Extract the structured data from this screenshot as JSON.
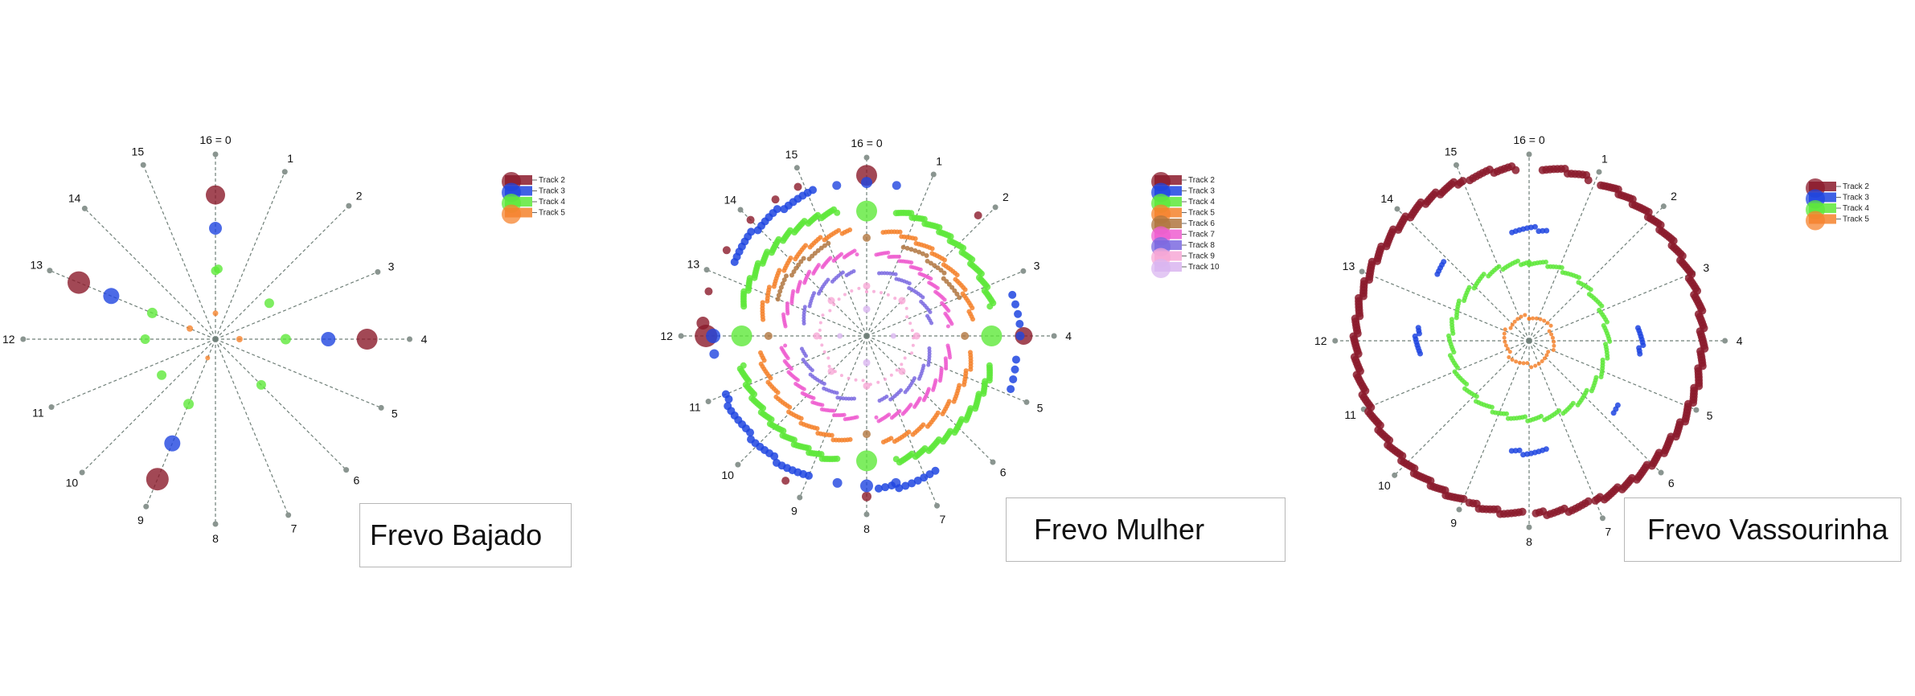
{
  "chart_data": [
    {
      "type": "scatter",
      "title": "Frevo Bajado",
      "axis": {
        "kind": "radial-clock",
        "subdivisions": 16,
        "labels": [
          "16 = 0",
          "1",
          "2",
          "3",
          "4",
          "5",
          "6",
          "7",
          "8",
          "9",
          "10",
          "11",
          "12",
          "13",
          "14",
          "15"
        ]
      },
      "legend": {
        "placement": "top-right",
        "entries": [
          "Track 2",
          "Track 3",
          "Track 4",
          "Track 5"
        ]
      },
      "series": [
        {
          "name": "Track 2",
          "color": "#8b1a2b",
          "points": [
            {
              "step": 0,
              "r": 0.78,
              "size": 22
            },
            {
              "step": 4,
              "r": 0.82,
              "size": 24
            },
            {
              "step": 9,
              "r": 0.82,
              "size": 26
            },
            {
              "step": 13,
              "r": 0.8,
              "size": 26
            }
          ]
        },
        {
          "name": "Track 3",
          "color": "#1f45e0",
          "points": [
            {
              "step": 0,
              "r": 0.6,
              "size": 14
            },
            {
              "step": 4,
              "r": 0.61,
              "size": 16
            },
            {
              "step": 9,
              "r": 0.61,
              "size": 18
            },
            {
              "step": 13,
              "r": 0.61,
              "size": 18
            }
          ]
        },
        {
          "name": "Track 4",
          "color": "#5ee83a",
          "points": [
            {
              "step": 0,
              "r": 0.37,
              "size": 9
            },
            {
              "step": 0.1,
              "r": 0.38,
              "size": 9
            },
            {
              "step": 2.5,
              "r": 0.35,
              "size": 10
            },
            {
              "step": 4,
              "r": 0.38,
              "size": 11
            },
            {
              "step": 6,
              "r": 0.35,
              "size": 10
            },
            {
              "step": 9,
              "r": 0.38,
              "size": 11
            },
            {
              "step": 10.5,
              "r": 0.35,
              "size": 10
            },
            {
              "step": 12,
              "r": 0.38,
              "size": 10
            },
            {
              "step": 13,
              "r": 0.37,
              "size": 11
            }
          ]
        },
        {
          "name": "Track 5",
          "color": "#f5832d",
          "points": [
            {
              "step": 0,
              "r": 0.14,
              "size": 5
            },
            {
              "step": 4,
              "r": 0.13,
              "size": 6
            },
            {
              "step": 9,
              "r": 0.11,
              "size": 4
            },
            {
              "step": 13,
              "r": 0.15,
              "size": 6
            }
          ]
        }
      ]
    },
    {
      "type": "scatter",
      "title": "Frevo Mulher",
      "axis": {
        "kind": "radial-clock",
        "subdivisions": 16,
        "labels": [
          "16 = 0",
          "1",
          "2",
          "3",
          "4",
          "5",
          "6",
          "7",
          "8",
          "9",
          "10",
          "11",
          "12",
          "13",
          "14",
          "15"
        ]
      },
      "legend": {
        "placement": "top-right",
        "entries": [
          "Track 2",
          "Track 3",
          "Track 4",
          "Track 5",
          "Track 6",
          "Track 7",
          "Track 8",
          "Track 9",
          "Track 10"
        ]
      },
      "series": [
        {
          "name": "Track 2",
          "color": "#8b1a2b",
          "points": [
            {
              "step": 0,
              "r": 0.9,
              "size": 24
            },
            {
              "step": 4,
              "r": 0.88,
              "size": 20
            },
            {
              "step": 8,
              "r": 0.9,
              "size": 10
            },
            {
              "step": 12,
              "r": 0.9,
              "size": 26
            },
            {
              "step": 12.2,
              "r": 0.92,
              "size": 14
            },
            {
              "step": 12.7,
              "r": 0.92,
              "size": 8
            },
            {
              "step": 13.4,
              "r": 0.92,
              "size": 8
            },
            {
              "step": 14,
              "r": 0.92,
              "size": 8
            },
            {
              "step": 14.5,
              "r": 0.92,
              "size": 8
            },
            {
              "step": 14.9,
              "r": 0.92,
              "size": 8
            },
            {
              "step": 1.9,
              "r": 0.92,
              "size": 8
            },
            {
              "step": 9.3,
              "r": 0.93,
              "size": 8
            }
          ]
        },
        {
          "name": "Track 3",
          "color": "#1f45e0",
          "points": [
            {
              "step": 0,
              "r": 0.86,
              "size": 12
            },
            {
              "step": 0.5,
              "r": 0.86,
              "size": 9
            },
            {
              "step": 15.5,
              "r": 0.86,
              "size": 9
            },
            {
              "step": 4,
              "r": 0.86,
              "size": 9
            },
            {
              "step": 8,
              "r": 0.84,
              "size": 14
            },
            {
              "step": 7.5,
              "r": 0.84,
              "size": 10
            },
            {
              "step": 8.5,
              "r": 0.84,
              "size": 10
            },
            {
              "step": 12,
              "r": 0.86,
              "size": 16
            },
            {
              "step": 11.7,
              "r": 0.86,
              "size": 10
            }
          ],
          "arcs": [
            {
              "from": 13.3,
              "to": 15.1,
              "r": 0.86,
              "density": 20,
              "size": 8
            },
            {
              "from": 3.3,
              "to": 3.8,
              "r": 0.86,
              "density": 4,
              "size": 8
            },
            {
              "from": 4.4,
              "to": 4.9,
              "r": 0.86,
              "density": 4,
              "size": 8
            },
            {
              "from": 9.0,
              "to": 11.0,
              "r": 0.86,
              "density": 22,
              "size": 8
            },
            {
              "from": 6.8,
              "to": 7.8,
              "r": 0.86,
              "density": 10,
              "size": 8
            }
          ]
        },
        {
          "name": "Track 4",
          "color": "#5ee83a",
          "points": [
            {
              "step": 0,
              "r": 0.7,
              "size": 24
            },
            {
              "step": 4,
              "r": 0.7,
              "size": 24
            },
            {
              "step": 8,
              "r": 0.7,
              "size": 24
            },
            {
              "step": 12,
              "r": 0.7,
              "size": 24
            }
          ],
          "arcs": [
            {
              "from": 0.6,
              "to": 3.4,
              "r": 0.72,
              "density": 60,
              "size": 6
            },
            {
              "from": 4.6,
              "to": 7.4,
              "r": 0.72,
              "density": 60,
              "size": 6
            },
            {
              "from": 8.6,
              "to": 11.4,
              "r": 0.72,
              "density": 60,
              "size": 6
            },
            {
              "from": 12.6,
              "to": 15.4,
              "r": 0.72,
              "density": 60,
              "size": 6
            }
          ]
        },
        {
          "name": "Track 5",
          "color": "#f5832d",
          "arcs": [
            {
              "from": 0.4,
              "to": 3.6,
              "r": 0.6,
              "density": 50,
              "size": 4
            },
            {
              "from": 4.4,
              "to": 7.6,
              "r": 0.6,
              "density": 50,
              "size": 4
            },
            {
              "from": 8.4,
              "to": 11.6,
              "r": 0.6,
              "density": 50,
              "size": 4
            },
            {
              "from": 12.4,
              "to": 15.6,
              "r": 0.6,
              "density": 50,
              "size": 4
            }
          ]
        },
        {
          "name": "Track 6",
          "color": "#b0753f",
          "points": [
            {
              "step": 0,
              "r": 0.55,
              "size": 8
            },
            {
              "step": 4,
              "r": 0.55,
              "size": 8
            },
            {
              "step": 8,
              "r": 0.55,
              "size": 8
            },
            {
              "step": 12,
              "r": 0.55,
              "size": 8
            }
          ],
          "arcs": [
            {
              "from": 13,
              "to": 15,
              "r": 0.55,
              "density": 20,
              "size": 4
            },
            {
              "from": 1,
              "to": 3,
              "r": 0.55,
              "density": 20,
              "size": 4
            }
          ]
        },
        {
          "name": "Track 7",
          "color": "#ef5ed0",
          "arcs": [
            {
              "from": 0.3,
              "to": 3.7,
              "r": 0.47,
              "density": 60,
              "size": 3
            },
            {
              "from": 4.3,
              "to": 7.7,
              "r": 0.47,
              "density": 60,
              "size": 3
            },
            {
              "from": 8.3,
              "to": 11.7,
              "r": 0.47,
              "density": 60,
              "size": 3
            },
            {
              "from": 12.3,
              "to": 15.7,
              "r": 0.47,
              "density": 60,
              "size": 3
            }
          ]
        },
        {
          "name": "Track 8",
          "color": "#7b6ae0",
          "arcs": [
            {
              "from": 0.5,
              "to": 3.5,
              "r": 0.37,
              "density": 30,
              "size": 3
            },
            {
              "from": 4.5,
              "to": 7.5,
              "r": 0.37,
              "density": 30,
              "size": 3
            },
            {
              "from": 8.5,
              "to": 11.5,
              "r": 0.37,
              "density": 30,
              "size": 3
            },
            {
              "from": 12.5,
              "to": 15.5,
              "r": 0.37,
              "density": 30,
              "size": 3
            }
          ]
        },
        {
          "name": "Track 9",
          "color": "#f7a8d6",
          "points": [
            {
              "step": 0,
              "r": 0.28,
              "size": 7
            },
            {
              "step": 4,
              "r": 0.28,
              "size": 7
            },
            {
              "step": 8,
              "r": 0.28,
              "size": 7
            },
            {
              "step": 12,
              "r": 0.28,
              "size": 7
            },
            {
              "step": 2,
              "r": 0.28,
              "size": 7
            },
            {
              "step": 6,
              "r": 0.28,
              "size": 7
            },
            {
              "step": 10,
              "r": 0.28,
              "size": 7
            },
            {
              "step": 14,
              "r": 0.28,
              "size": 7
            }
          ],
          "arcs": [
            {
              "from": 0,
              "to": 16,
              "r": 0.26,
              "density": 40,
              "size": 2
            }
          ]
        },
        {
          "name": "Track 10",
          "color": "#d9b5f0",
          "points": [
            {
              "step": 0,
              "r": 0.15,
              "size": 7
            },
            {
              "step": 4,
              "r": 0.15,
              "size": 5
            },
            {
              "step": 8,
              "r": 0.15,
              "size": 7
            },
            {
              "step": 12,
              "r": 0.15,
              "size": 5
            }
          ]
        }
      ]
    },
    {
      "type": "scatter",
      "title": "Frevo Vassourinha",
      "axis": {
        "kind": "radial-clock",
        "subdivisions": 16,
        "labels": [
          "16 = 0",
          "1",
          "2",
          "3",
          "4",
          "5",
          "6",
          "7",
          "8",
          "9",
          "10",
          "11",
          "12",
          "13",
          "14",
          "15"
        ]
      },
      "legend": {
        "placement": "top-right",
        "entries": [
          "Track 2",
          "Track 3",
          "Track 4",
          "Track 5"
        ]
      },
      "series": [
        {
          "name": "Track 2",
          "color": "#8b1a2b",
          "arcs": [
            {
              "from": 0.2,
              "to": 0.9,
              "r": 0.93,
              "density": 14,
              "size": 8
            },
            {
              "from": 1.1,
              "to": 7.0,
              "r": 0.93,
              "density": 140,
              "size": 8
            },
            {
              "from": 7.1,
              "to": 7.9,
              "r": 0.93,
              "density": 16,
              "size": 8
            },
            {
              "from": 8.1,
              "to": 8.9,
              "r": 0.93,
              "density": 16,
              "size": 8
            },
            {
              "from": 9.0,
              "to": 15.0,
              "r": 0.93,
              "density": 140,
              "size": 8
            },
            {
              "from": 15.1,
              "to": 15.8,
              "r": 0.93,
              "density": 14,
              "size": 8
            }
          ]
        },
        {
          "name": "Track 3",
          "color": "#1f45e0",
          "arcs": [
            {
              "from": 15.6,
              "to": 0.4,
              "r": 0.6,
              "density": 10,
              "size": 5
            },
            {
              "from": 3.7,
              "to": 4.3,
              "r": 0.6,
              "density": 10,
              "size": 5
            },
            {
              "from": 7.6,
              "to": 8.4,
              "r": 0.6,
              "density": 10,
              "size": 5
            },
            {
              "from": 11.7,
              "to": 12.3,
              "r": 0.6,
              "density": 10,
              "size": 5
            },
            {
              "from": 13.6,
              "to": 13.9,
              "r": 0.62,
              "density": 5,
              "size": 5
            },
            {
              "from": 5.6,
              "to": 5.8,
              "r": 0.6,
              "density": 3,
              "size": 5
            }
          ]
        },
        {
          "name": "Track 4",
          "color": "#5ee83a",
          "arcs": [
            {
              "from": 0,
              "to": 16,
              "r": 0.42,
              "density": 180,
              "size": 4
            }
          ]
        },
        {
          "name": "Track 5",
          "color": "#f5832d",
          "arcs": [
            {
              "from": 0,
              "to": 16,
              "r": 0.13,
              "density": 40,
              "size": 3
            }
          ]
        }
      ]
    }
  ]
}
